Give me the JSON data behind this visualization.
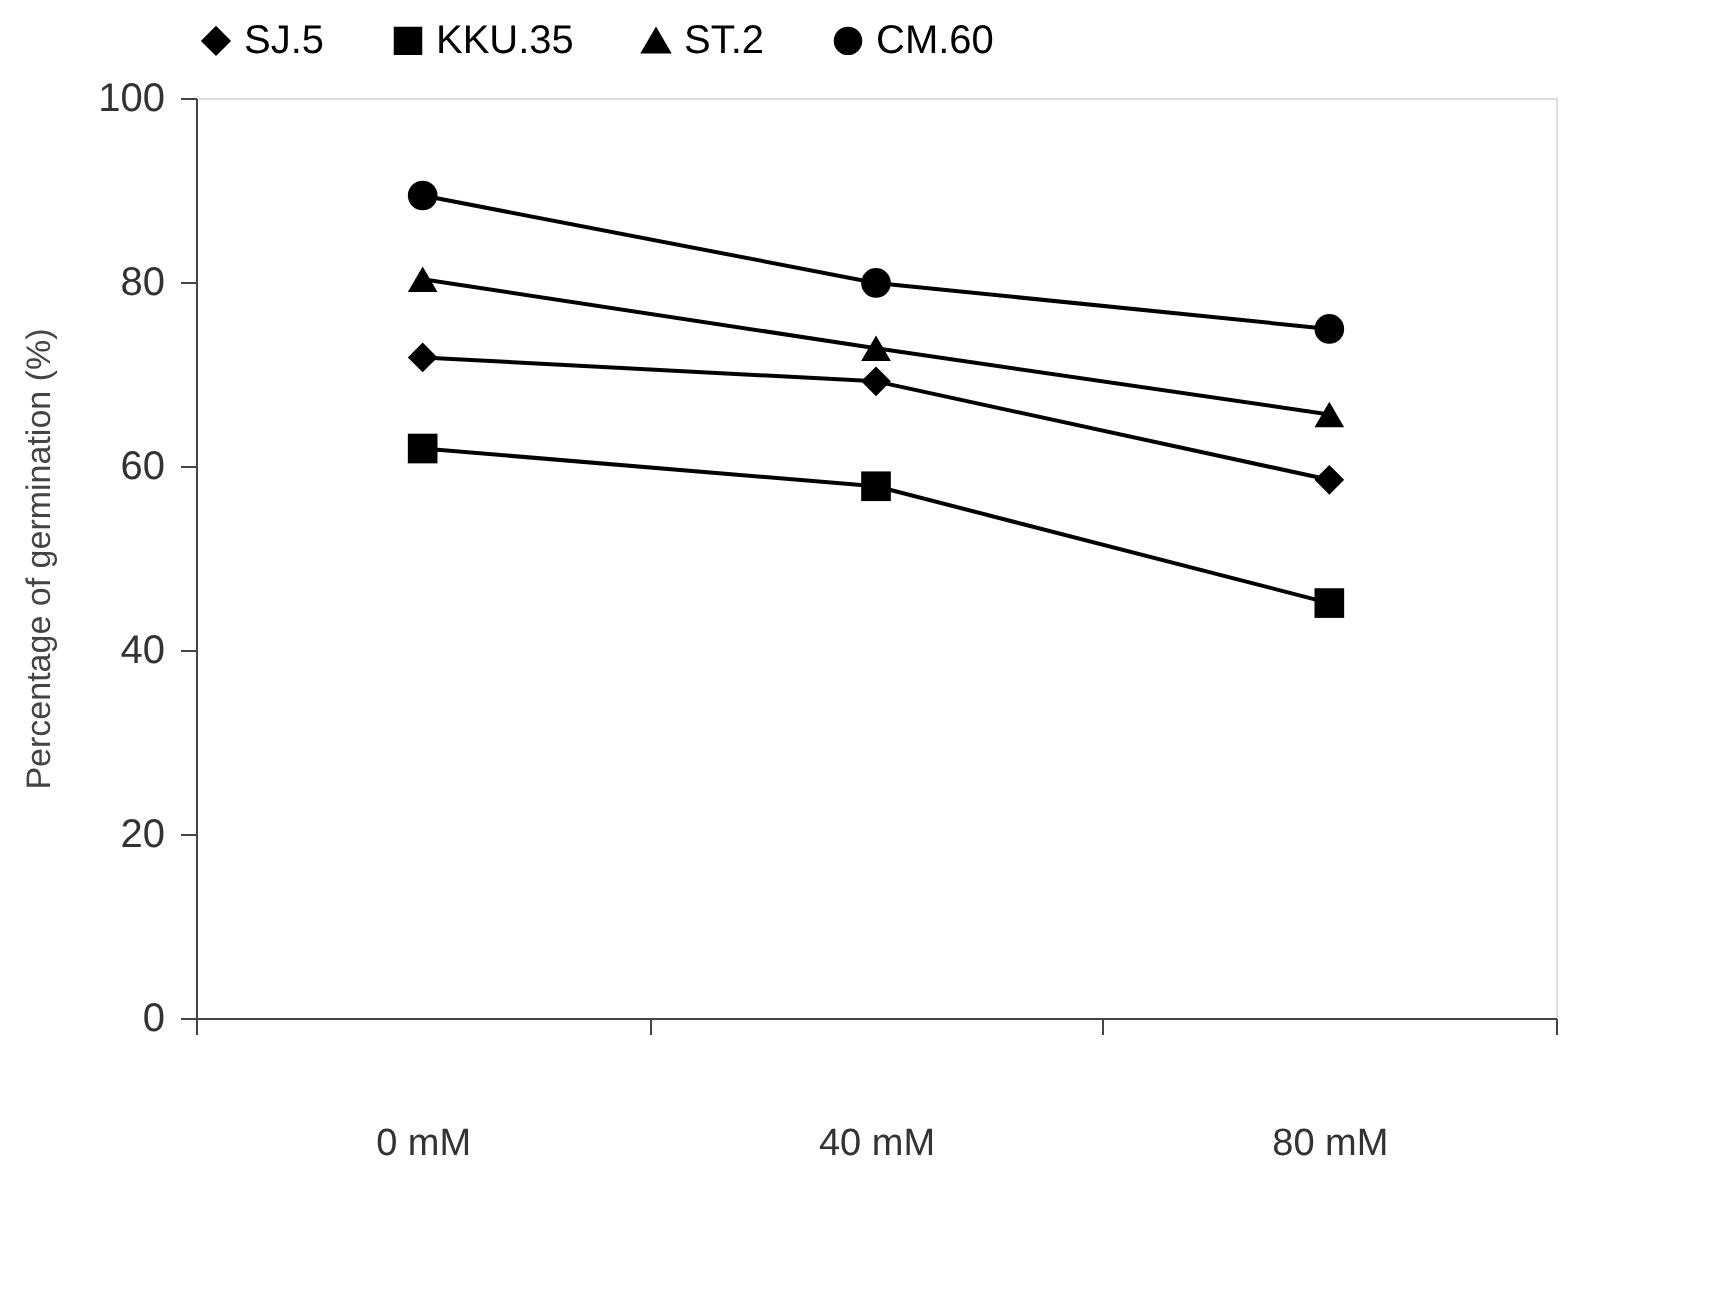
{
  "chart_data": {
    "type": "line",
    "ylabel": "Percentage of germination (%)",
    "categories": [
      "0 mM",
      "40 mM",
      "80 mM"
    ],
    "ylim": [
      0,
      100
    ],
    "yticks": [
      0,
      20,
      40,
      60,
      80,
      100
    ],
    "grid": false,
    "legend": "top",
    "line_style": "solid",
    "series": [
      {
        "name": "SJ.5",
        "color": "#000000",
        "marker": "diamond",
        "values": [
          71.8,
          69.2,
          58.5
        ]
      },
      {
        "name": "KKU.35",
        "color": "#000000",
        "marker": "square",
        "values": [
          61.9,
          57.8,
          45.1
        ]
      },
      {
        "name": "ST.2",
        "color": "#000000",
        "marker": "triangle",
        "values": [
          80.3,
          72.8,
          65.6
        ]
      },
      {
        "name": "CM.60",
        "color": "#000000",
        "marker": "circle",
        "values": [
          89.4,
          79.9,
          74.9
        ]
      }
    ]
  }
}
